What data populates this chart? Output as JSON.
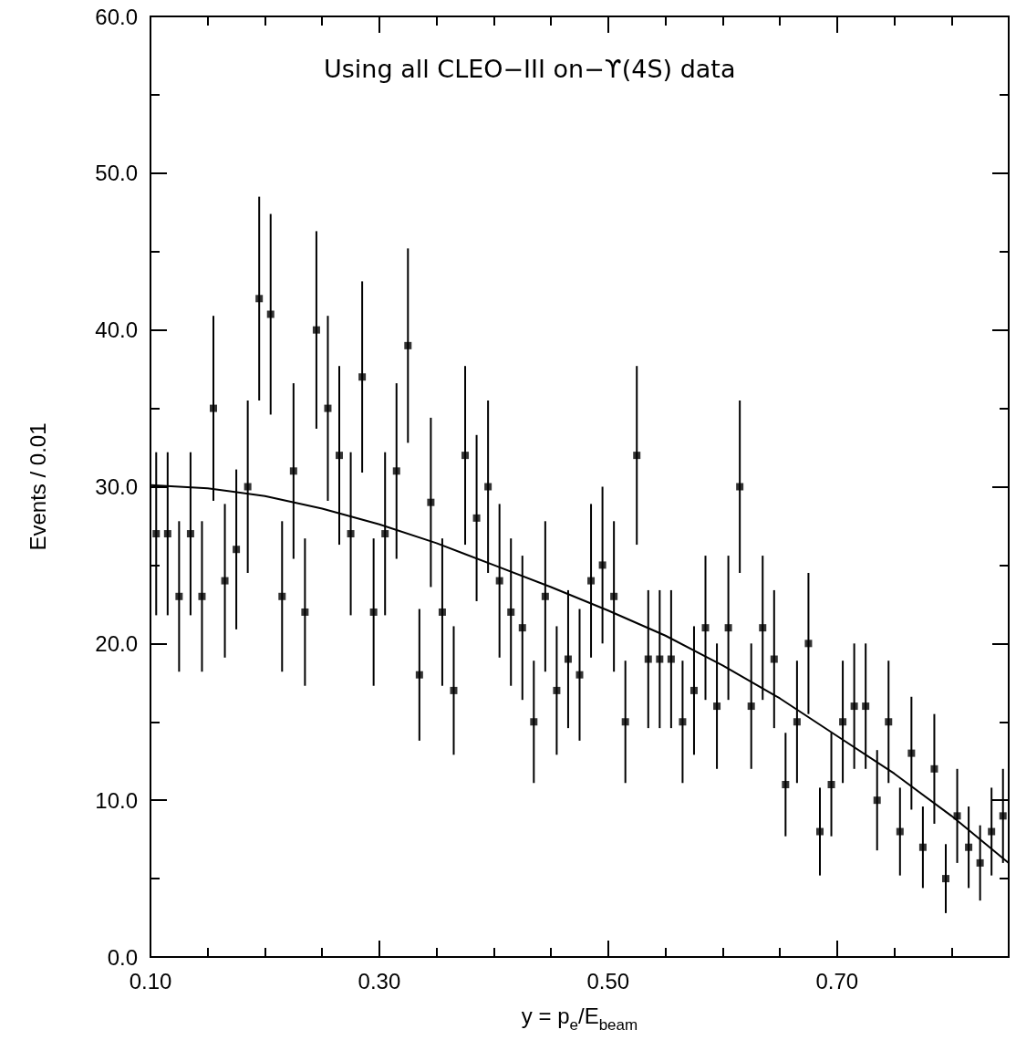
{
  "chart_data": {
    "type": "scatter",
    "xlabel": "y = p$_{e}$/E$_{beam}$",
    "ylabel": "Events / 0.01",
    "annotations": [
      "Using all CLEO−III on−ϒ(4S) data"
    ],
    "xlim": [
      0.1,
      0.85
    ],
    "ylim": [
      0,
      60
    ],
    "xticks": [
      {
        "value": 0.1,
        "label": "0.10"
      },
      {
        "value": 0.15,
        "label": null
      },
      {
        "value": 0.2,
        "label": null
      },
      {
        "value": 0.25,
        "label": null
      },
      {
        "value": 0.3,
        "label": "0.30"
      },
      {
        "value": 0.35,
        "label": null
      },
      {
        "value": 0.4,
        "label": null
      },
      {
        "value": 0.45,
        "label": null
      },
      {
        "value": 0.5,
        "label": "0.50"
      },
      {
        "value": 0.55,
        "label": null
      },
      {
        "value": 0.6,
        "label": null
      },
      {
        "value": 0.65,
        "label": null
      },
      {
        "value": 0.7,
        "label": "0.70"
      },
      {
        "value": 0.75,
        "label": null
      },
      {
        "value": 0.8,
        "label": null
      }
    ],
    "yticks": [
      {
        "value": 0,
        "label": "0.0"
      },
      {
        "value": 5,
        "label": null
      },
      {
        "value": 10,
        "label": "10.0"
      },
      {
        "value": 15,
        "label": null
      },
      {
        "value": 20,
        "label": "20.0"
      },
      {
        "value": 25,
        "label": null
      },
      {
        "value": 30,
        "label": "30.0"
      },
      {
        "value": 35,
        "label": null
      },
      {
        "value": 40,
        "label": "40.0"
      },
      {
        "value": 45,
        "label": null
      },
      {
        "value": 50,
        "label": "50.0"
      },
      {
        "value": 55,
        "label": null
      },
      {
        "value": 60,
        "label": "60.0"
      }
    ],
    "grid": false,
    "marker": "square",
    "series": [
      {
        "color": "#000000",
        "x": [
          0.105,
          0.115,
          0.125,
          0.135,
          0.145,
          0.155,
          0.165,
          0.175,
          0.185,
          0.195,
          0.205,
          0.215,
          0.225,
          0.235,
          0.245,
          0.255,
          0.265,
          0.275,
          0.285,
          0.295,
          0.305,
          0.315,
          0.325,
          0.335,
          0.345,
          0.355,
          0.365,
          0.375,
          0.385,
          0.395,
          0.405,
          0.415,
          0.425,
          0.435,
          0.445,
          0.455,
          0.465,
          0.475,
          0.485,
          0.495,
          0.505,
          0.515,
          0.525,
          0.535,
          0.545,
          0.555,
          0.565,
          0.575,
          0.585,
          0.595,
          0.605,
          0.615,
          0.625,
          0.635,
          0.645,
          0.655,
          0.665,
          0.675,
          0.685,
          0.695,
          0.705,
          0.715,
          0.725,
          0.735,
          0.745,
          0.755,
          0.765,
          0.775,
          0.785,
          0.795,
          0.805,
          0.815,
          0.825,
          0.835,
          0.845
        ],
        "values": [
          27,
          27,
          23,
          27,
          23,
          35,
          24,
          26,
          30,
          42,
          41,
          23,
          31,
          22,
          40,
          35,
          32,
          27,
          37,
          22,
          27,
          31,
          39,
          18,
          29,
          22,
          17,
          32,
          28,
          30,
          24,
          22,
          21,
          15,
          23,
          17,
          19,
          18,
          24,
          25,
          23,
          15,
          32,
          19,
          19,
          19,
          15,
          17,
          21,
          16,
          21,
          30,
          16,
          21,
          19,
          11,
          15,
          20,
          8,
          11,
          15,
          16,
          16,
          10,
          15,
          8,
          13,
          7,
          12,
          5,
          9,
          7,
          6,
          8,
          9
        ],
        "errors": [
          5.2,
          5.2,
          4.8,
          5.2,
          4.8,
          5.9,
          4.9,
          5.1,
          5.5,
          6.5,
          6.4,
          4.8,
          5.6,
          4.7,
          6.3,
          5.9,
          5.7,
          5.2,
          6.1,
          4.7,
          5.2,
          5.6,
          6.2,
          4.2,
          5.4,
          4.7,
          4.1,
          5.7,
          5.3,
          5.5,
          4.9,
          4.7,
          4.6,
          3.9,
          4.8,
          4.1,
          4.4,
          4.2,
          4.9,
          5.0,
          4.8,
          3.9,
          5.7,
          4.4,
          4.4,
          4.4,
          3.9,
          4.1,
          4.6,
          4.0,
          4.6,
          5.5,
          4.0,
          4.6,
          4.4,
          3.3,
          3.9,
          4.5,
          2.8,
          3.3,
          3.9,
          4.0,
          4.0,
          3.2,
          3.9,
          2.8,
          3.6,
          2.6,
          3.5,
          2.2,
          3.0,
          2.6,
          2.4,
          2.8,
          3.0
        ]
      },
      {
        "type": "line",
        "color": "#000000",
        "marker": "none",
        "line_style": "solid",
        "x": [
          0.1,
          0.15,
          0.2,
          0.25,
          0.3,
          0.35,
          0.4,
          0.45,
          0.5,
          0.55,
          0.6,
          0.65,
          0.7,
          0.75,
          0.8,
          0.85
        ],
        "values": [
          30.1,
          29.9,
          29.4,
          28.6,
          27.6,
          26.4,
          25.0,
          23.6,
          22.1,
          20.5,
          18.6,
          16.5,
          14.1,
          11.7,
          9.0,
          6.0
        ]
      }
    ]
  }
}
